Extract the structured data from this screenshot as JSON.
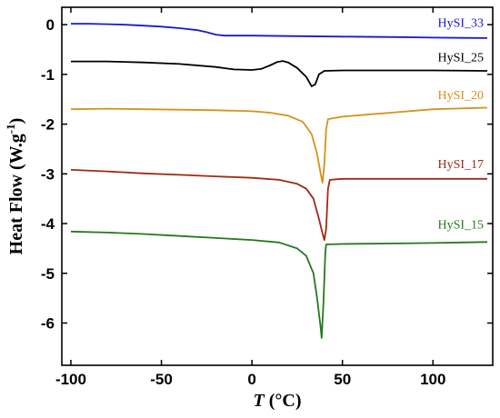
{
  "chart_data": {
    "type": "line",
    "xlabel_italic": "T",
    "xlabel_rest": " (°C)",
    "ylabel": "Heat Flow (W.g",
    "ylabel_sup": "-1",
    "ylabel_close": ")",
    "xlim": [
      -105,
      133
    ],
    "ylim": [
      -6.85,
      0.35
    ],
    "xticks": [
      -100,
      -50,
      0,
      50,
      100
    ],
    "yticks": [
      0,
      -1,
      -2,
      -3,
      -4,
      -5,
      -6
    ],
    "grid": false,
    "series": [
      {
        "name": "HySI_33",
        "color": "#1a1acc",
        "points": [
          [
            -100,
            0.02
          ],
          [
            -90,
            0.02
          ],
          [
            -80,
            0.01
          ],
          [
            -70,
            0.0
          ],
          [
            -60,
            -0.02
          ],
          [
            -50,
            -0.04
          ],
          [
            -40,
            -0.07
          ],
          [
            -30,
            -0.11
          ],
          [
            -25,
            -0.15
          ],
          [
            -20,
            -0.2
          ],
          [
            -15,
            -0.22
          ],
          [
            -10,
            -0.22
          ],
          [
            0,
            -0.22
          ],
          [
            20,
            -0.23
          ],
          [
            50,
            -0.24
          ],
          [
            80,
            -0.25
          ],
          [
            100,
            -0.26
          ],
          [
            130,
            -0.27
          ]
        ]
      },
      {
        "name": "HySI_25",
        "color": "#000000",
        "points": [
          [
            -100,
            -0.74
          ],
          [
            -80,
            -0.74
          ],
          [
            -60,
            -0.76
          ],
          [
            -40,
            -0.79
          ],
          [
            -20,
            -0.85
          ],
          [
            -10,
            -0.9
          ],
          [
            0,
            -0.91
          ],
          [
            5,
            -0.89
          ],
          [
            10,
            -0.82
          ],
          [
            14,
            -0.75
          ],
          [
            17,
            -0.73
          ],
          [
            20,
            -0.76
          ],
          [
            25,
            -0.87
          ],
          [
            30,
            -1.05
          ],
          [
            33,
            -1.24
          ],
          [
            35,
            -1.2
          ],
          [
            37,
            -1.0
          ],
          [
            40,
            -0.93
          ],
          [
            50,
            -0.92
          ],
          [
            70,
            -0.92
          ],
          [
            100,
            -0.92
          ],
          [
            130,
            -0.93
          ]
        ]
      },
      {
        "name": "HySI_20",
        "color": "#d4921c",
        "points": [
          [
            -100,
            -1.7
          ],
          [
            -80,
            -1.69
          ],
          [
            -60,
            -1.7
          ],
          [
            -40,
            -1.71
          ],
          [
            -20,
            -1.72
          ],
          [
            0,
            -1.74
          ],
          [
            10,
            -1.77
          ],
          [
            20,
            -1.83
          ],
          [
            28,
            -1.95
          ],
          [
            33,
            -2.2
          ],
          [
            36,
            -2.6
          ],
          [
            38,
            -3.0
          ],
          [
            39,
            -3.18
          ],
          [
            40,
            -2.8
          ],
          [
            41,
            -2.1
          ],
          [
            42,
            -1.9
          ],
          [
            50,
            -1.85
          ],
          [
            60,
            -1.82
          ],
          [
            80,
            -1.76
          ],
          [
            100,
            -1.7
          ],
          [
            130,
            -1.67
          ]
        ]
      },
      {
        "name": "HySI_17",
        "color": "#a02a14",
        "points": [
          [
            -100,
            -2.92
          ],
          [
            -80,
            -2.95
          ],
          [
            -60,
            -2.99
          ],
          [
            -40,
            -3.02
          ],
          [
            -20,
            -3.05
          ],
          [
            0,
            -3.08
          ],
          [
            15,
            -3.12
          ],
          [
            25,
            -3.2
          ],
          [
            30,
            -3.3
          ],
          [
            34,
            -3.5
          ],
          [
            37,
            -3.9
          ],
          [
            39,
            -4.2
          ],
          [
            40,
            -4.33
          ],
          [
            41,
            -4.1
          ],
          [
            42,
            -3.3
          ],
          [
            43,
            -3.12
          ],
          [
            50,
            -3.1
          ],
          [
            80,
            -3.1
          ],
          [
            100,
            -3.1
          ],
          [
            130,
            -3.1
          ]
        ]
      },
      {
        "name": "HySI_15",
        "color": "#237a1a",
        "points": [
          [
            -100,
            -4.16
          ],
          [
            -80,
            -4.18
          ],
          [
            -60,
            -4.21
          ],
          [
            -40,
            -4.25
          ],
          [
            -20,
            -4.29
          ],
          [
            0,
            -4.33
          ],
          [
            15,
            -4.38
          ],
          [
            25,
            -4.5
          ],
          [
            30,
            -4.65
          ],
          [
            34,
            -5.0
          ],
          [
            36,
            -5.5
          ],
          [
            38,
            -6.1
          ],
          [
            38.5,
            -6.3
          ],
          [
            39.5,
            -5.6
          ],
          [
            40.5,
            -4.6
          ],
          [
            41,
            -4.42
          ],
          [
            50,
            -4.41
          ],
          [
            80,
            -4.4
          ],
          [
            100,
            -4.39
          ],
          [
            130,
            -4.37
          ]
        ]
      }
    ],
    "labels": [
      {
        "text": "HySI_33",
        "x": 128,
        "y": -0.04,
        "color": "#1a1acc"
      },
      {
        "text": "HySI_25",
        "x": 128,
        "y": -0.74,
        "color": "#000000"
      },
      {
        "text": "HySI_20",
        "x": 128,
        "y": -1.5,
        "color": "#d4921c"
      },
      {
        "text": "HySI_17",
        "x": 128,
        "y": -2.88,
        "color": "#a02a14"
      },
      {
        "text": "HySI_15",
        "x": 128,
        "y": -4.1,
        "color": "#237a1a"
      }
    ]
  }
}
